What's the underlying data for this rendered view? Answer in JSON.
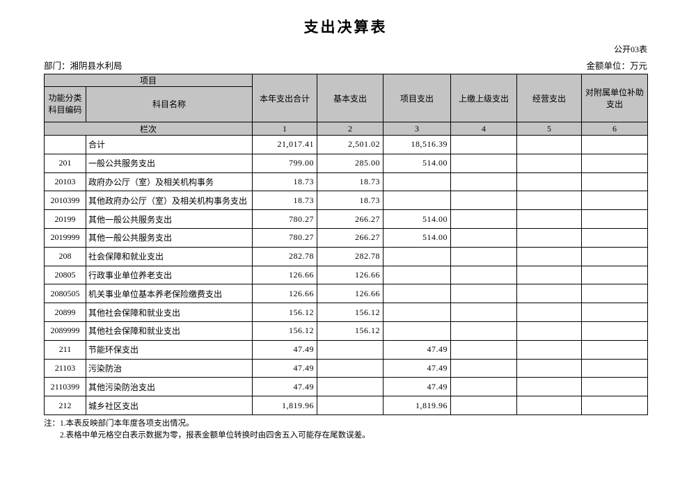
{
  "page": {
    "title": "支出决算表",
    "form_label": "公开03表",
    "department": "部门：湘阴县水利局",
    "unit": "金额单位：万元"
  },
  "table": {
    "header": {
      "project": "项目",
      "code": "功能分类科目编码",
      "subject_name": "科目名称",
      "cols": [
        "本年支出合计",
        "基本支出",
        "项目支出",
        "上缴上级支出",
        "经营支出",
        "对附属单位补助支出"
      ],
      "lanci": "栏次",
      "col_numbers": [
        "1",
        "2",
        "3",
        "4",
        "5",
        "6"
      ]
    },
    "rows": [
      {
        "code": "",
        "name": "合计",
        "values": [
          "21,017.41",
          "2,501.02",
          "18,516.39",
          "",
          "",
          ""
        ]
      },
      {
        "code": "201",
        "name": "一般公共服务支出",
        "values": [
          "799.00",
          "285.00",
          "514.00",
          "",
          "",
          ""
        ]
      },
      {
        "code": "20103",
        "name": "政府办公厅（室）及相关机构事务",
        "values": [
          "18.73",
          "18.73",
          "",
          "",
          "",
          ""
        ]
      },
      {
        "code": "2010399",
        "name": "其他政府办公厅（室）及相关机构事务支出",
        "values": [
          "18.73",
          "18.73",
          "",
          "",
          "",
          ""
        ]
      },
      {
        "code": "20199",
        "name": "其他一般公共服务支出",
        "values": [
          "780.27",
          "266.27",
          "514.00",
          "",
          "",
          ""
        ]
      },
      {
        "code": "2019999",
        "name": "其他一般公共服务支出",
        "values": [
          "780.27",
          "266.27",
          "514.00",
          "",
          "",
          ""
        ]
      },
      {
        "code": "208",
        "name": "社会保障和就业支出",
        "values": [
          "282.78",
          "282.78",
          "",
          "",
          "",
          ""
        ]
      },
      {
        "code": "20805",
        "name": "行政事业单位养老支出",
        "values": [
          "126.66",
          "126.66",
          "",
          "",
          "",
          ""
        ]
      },
      {
        "code": "2080505",
        "name": "机关事业单位基本养老保险缴费支出",
        "values": [
          "126.66",
          "126.66",
          "",
          "",
          "",
          ""
        ]
      },
      {
        "code": "20899",
        "name": "其他社会保障和就业支出",
        "values": [
          "156.12",
          "156.12",
          "",
          "",
          "",
          ""
        ]
      },
      {
        "code": "2089999",
        "name": "其他社会保障和就业支出",
        "values": [
          "156.12",
          "156.12",
          "",
          "",
          "",
          ""
        ]
      },
      {
        "code": "211",
        "name": "节能环保支出",
        "values": [
          "47.49",
          "",
          "47.49",
          "",
          "",
          ""
        ]
      },
      {
        "code": "21103",
        "name": "污染防治",
        "values": [
          "47.49",
          "",
          "47.49",
          "",
          "",
          ""
        ]
      },
      {
        "code": "2110399",
        "name": "其他污染防治支出",
        "values": [
          "47.49",
          "",
          "47.49",
          "",
          "",
          ""
        ]
      },
      {
        "code": "212",
        "name": "城乡社区支出",
        "values": [
          "1,819.96",
          "",
          "1,819.96",
          "",
          "",
          ""
        ]
      }
    ]
  },
  "notes": [
    "注：1.本表反映部门本年度各项支出情况。",
    "2.表格中单元格空白表示数据为零，报表金额单位转换时由四舍五入可能存在尾数误差。"
  ],
  "colors": {
    "header_bg": "#c4c4c4",
    "border": "#000000",
    "page_bg": "#ffffff"
  }
}
